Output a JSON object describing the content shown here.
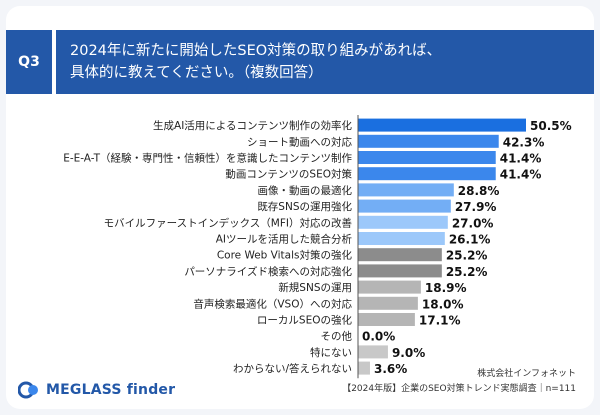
{
  "header": {
    "qnum": "Q3",
    "question_line1": "2024年に新たに開始したSEO対策の取り組みがあれば、",
    "question_line2": "具体的に教えてください。（複数回答）"
  },
  "footer": {
    "logo": "MEGLASS finder",
    "company": "株式会社インフォネット",
    "survey": "【2024年版】企業のSEO対策トレンド実態調査｜n=111"
  },
  "chart_data": {
    "type": "bar",
    "orientation": "horizontal",
    "categories": [
      "生成AI活用によるコンテンツ制作の効率化",
      "ショート動画への対応",
      "E-E-A-T（経験・専門性・信頼性）を意識したコンテンツ制作",
      "動画コンテンツのSEO対策",
      "画像・動画の最適化",
      "既存SNSの運用強化",
      "モバイルファーストインデックス（MFI）対応の改善",
      "AIツールを活用した競合分析",
      "Core Web Vitals対策の強化",
      "パーソナライズド検索への対応強化",
      "新規SNSの運用",
      "音声検索最適化（VSO）への対応",
      "ローカルSEOの強化",
      "その他",
      "特にない",
      "わからない/答えられない"
    ],
    "values": [
      50.5,
      42.3,
      41.4,
      41.4,
      28.8,
      27.9,
      27.0,
      26.1,
      25.2,
      25.2,
      18.9,
      18.0,
      17.1,
      0.0,
      9.0,
      3.6
    ],
    "value_labels": [
      "50.5%",
      "42.3%",
      "41.4%",
      "41.4%",
      "28.8%",
      "27.9%",
      "27.0%",
      "26.1%",
      "25.2%",
      "25.2%",
      "18.9%",
      "18.0%",
      "17.1%",
      "0.0%",
      "9.0%",
      "3.6%"
    ],
    "bar_colors": [
      "#1a6fe0",
      "#3b87ec",
      "#3b87ec",
      "#3b87ec",
      "#73aef5",
      "#73aef5",
      "#9cc8fa",
      "#9cc8fa",
      "#8c8c8c",
      "#8c8c8c",
      "#b5b5b5",
      "#b5b5b5",
      "#b5b5b5",
      "#c8c8c8",
      "#c8c8c8",
      "#c8c8c8"
    ],
    "xlim": [
      0,
      50.5
    ],
    "grid": false,
    "legend": "none"
  }
}
